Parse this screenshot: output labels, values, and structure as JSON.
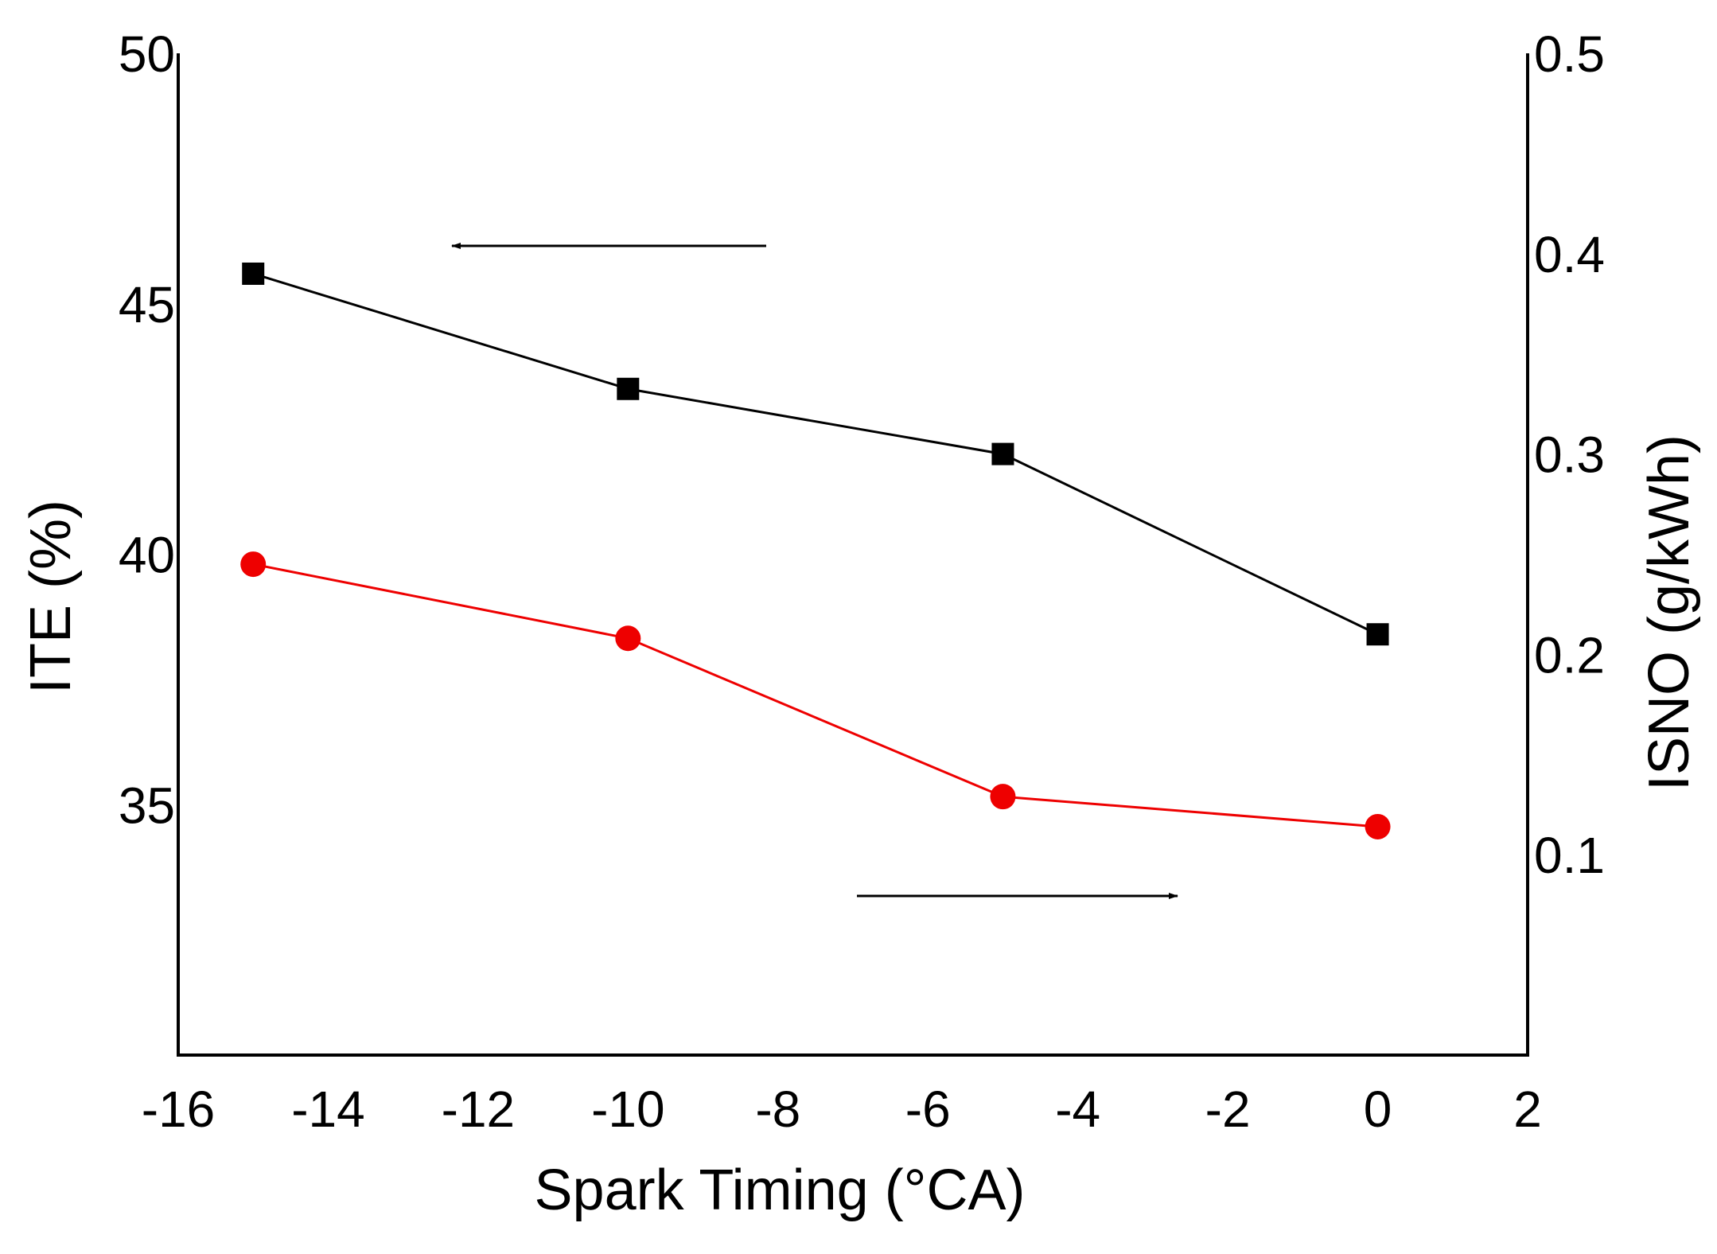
{
  "chart_data": {
    "type": "line",
    "title": "",
    "xlabel": "Spark Timing (°CA)",
    "ylabel": "ITE (%)",
    "y2label": "ISNO (g/kWh)",
    "xlim": [
      -16,
      2
    ],
    "ylim": [
      30,
      50
    ],
    "y2lim": [
      0.0,
      0.5
    ],
    "xticks": [
      -16,
      -14,
      -12,
      -10,
      -8,
      -6,
      -4,
      -2,
      0,
      2
    ],
    "yticks": [
      35,
      40,
      45,
      50
    ],
    "y2ticks": [
      0.1,
      0.2,
      0.3,
      0.4,
      0.5
    ],
    "xtick_labels": [
      "-16",
      "-14",
      "-12",
      "-10",
      "-8",
      "-6",
      "-4",
      "-2",
      "0",
      "2"
    ],
    "ytick_labels": [
      "35",
      "40",
      "45",
      "50"
    ],
    "y2tick_labels": [
      "0.1",
      "0.2",
      "0.3",
      "0.4",
      "0.5"
    ],
    "x": [
      -15,
      -10,
      -5,
      0
    ],
    "series": [
      {
        "name": "ITE",
        "axis": "left",
        "marker": "square",
        "color": "#000000",
        "values": [
          45.6,
          43.3,
          42.0,
          38.4
        ]
      },
      {
        "name": "ISNO",
        "axis": "right",
        "marker": "circle",
        "color": "#ee0000",
        "values": [
          0.245,
          0.208,
          0.129,
          0.114
        ]
      }
    ],
    "annotations": [
      {
        "type": "arrow",
        "direction": "left",
        "points_to": "left axis (ITE)"
      },
      {
        "type": "arrow",
        "direction": "right",
        "points_to": "right axis (ISNO)"
      }
    ]
  }
}
